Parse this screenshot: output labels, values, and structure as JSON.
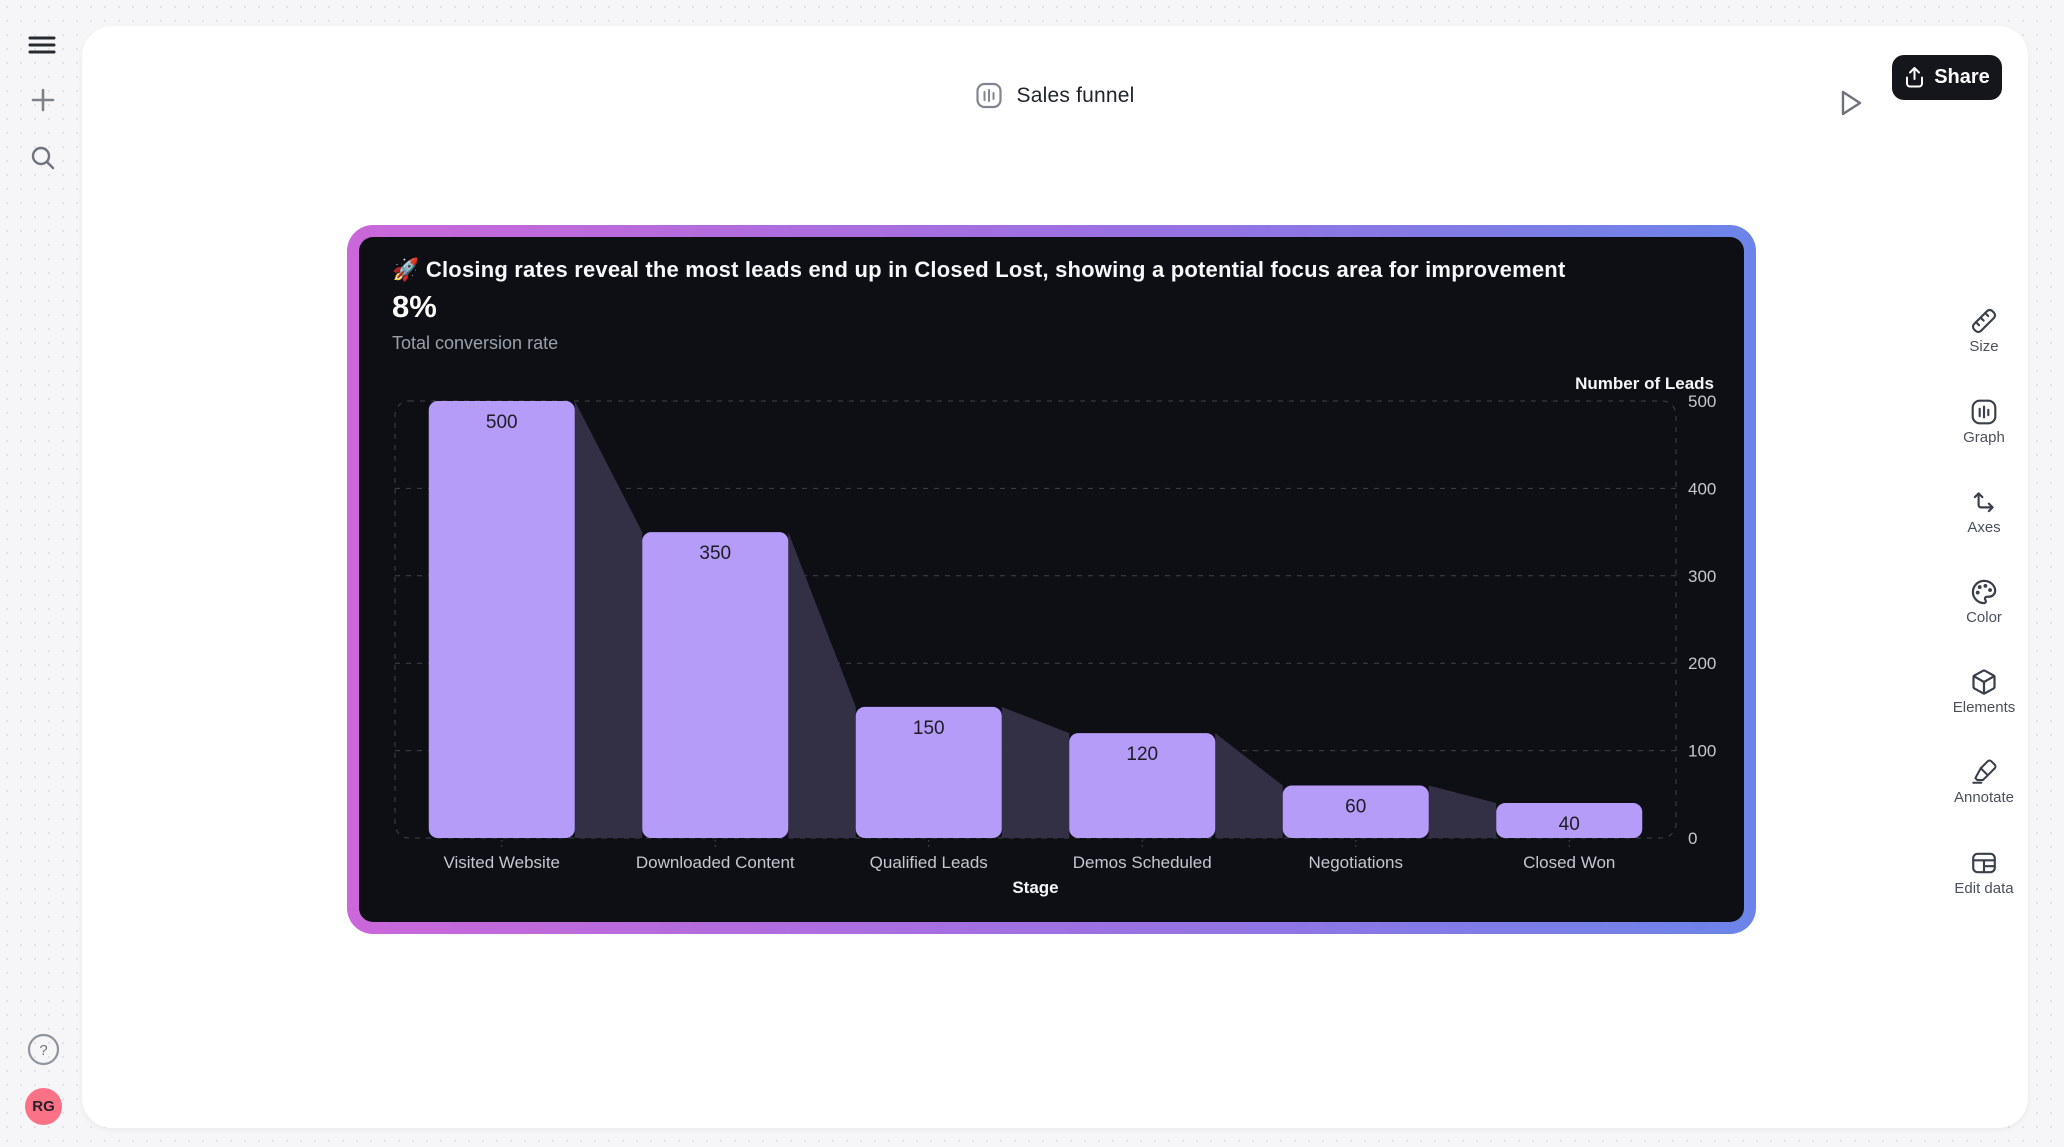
{
  "topbar": {
    "title": "Sales funnel",
    "share_label": "Share"
  },
  "sidebar": {
    "avatar_initials": "RG",
    "avatar_color": "#fb7185"
  },
  "toolbar": {
    "items": [
      {
        "label": "Size"
      },
      {
        "label": "Graph"
      },
      {
        "label": "Axes"
      },
      {
        "label": "Color"
      },
      {
        "label": "Elements"
      },
      {
        "label": "Annotate"
      },
      {
        "label": "Edit data"
      }
    ]
  },
  "widget": {
    "headline_emoji": "🚀",
    "headline": "Closing rates reveal the most leads end up in Closed Lost, showing a potential focus area for improvement",
    "metric_value": "8%",
    "metric_label": "Total conversion rate",
    "border_gradient": [
      "#ca67d9",
      "#6c84e9"
    ],
    "background": "#0e0f14"
  },
  "chart_data": {
    "type": "bar",
    "subtype": "funnel",
    "title": "",
    "categories": [
      "Visited Website",
      "Downloaded Content",
      "Qualified Leads",
      "Demos Scheduled",
      "Negotiations",
      "Closed Won"
    ],
    "values": [
      500,
      350,
      150,
      120,
      60,
      40
    ],
    "xlabel": "Stage",
    "ylabel": "Number of Leads",
    "ylim": [
      0,
      500
    ],
    "yticks": [
      0,
      100,
      200,
      300,
      400,
      500
    ],
    "grid": "dashed-horizontal",
    "legend": "none",
    "bar_color": "#b59cf9",
    "connector_color": "#332f44",
    "value_label_color": "#1c1c24",
    "tick_label_color": "#c4c7ce",
    "axis_title_color": "#f5f6f8",
    "grid_color": "rgba(255,255,255,0.22)"
  }
}
